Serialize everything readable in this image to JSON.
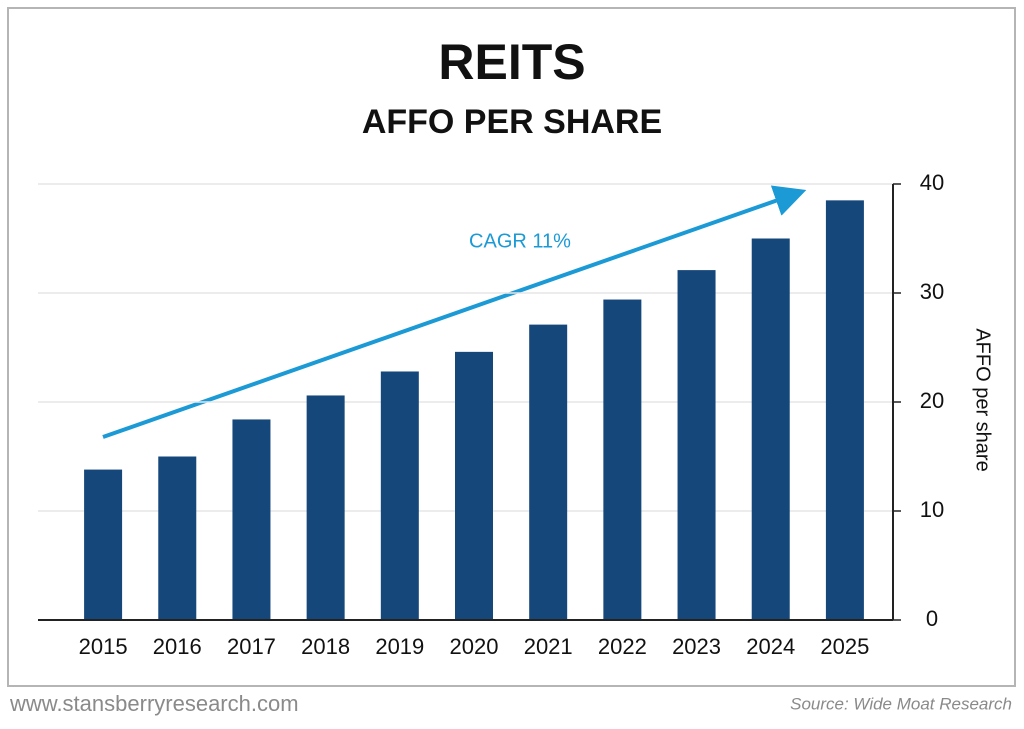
{
  "chart_data": {
    "type": "bar",
    "title": "REITS",
    "subtitle": "AFFO PER SHARE",
    "y_label": "AFFO per share",
    "annotation": "CAGR 11%",
    "categories": [
      "2015",
      "2016",
      "2017",
      "2018",
      "2019",
      "2020",
      "2021",
      "2022",
      "2023",
      "2024",
      "2025"
    ],
    "values": [
      13.8,
      15.0,
      18.4,
      20.6,
      22.8,
      24.6,
      27.1,
      29.4,
      32.1,
      35.0,
      38.5
    ],
    "color": "#15477b",
    "ylim": [
      0,
      40
    ],
    "yticks": [
      0,
      10,
      20,
      30,
      40
    ],
    "grid": true
  },
  "footer": {
    "website": "www.stansberryresearch.com",
    "source": "Source: Wide Moat Research"
  }
}
